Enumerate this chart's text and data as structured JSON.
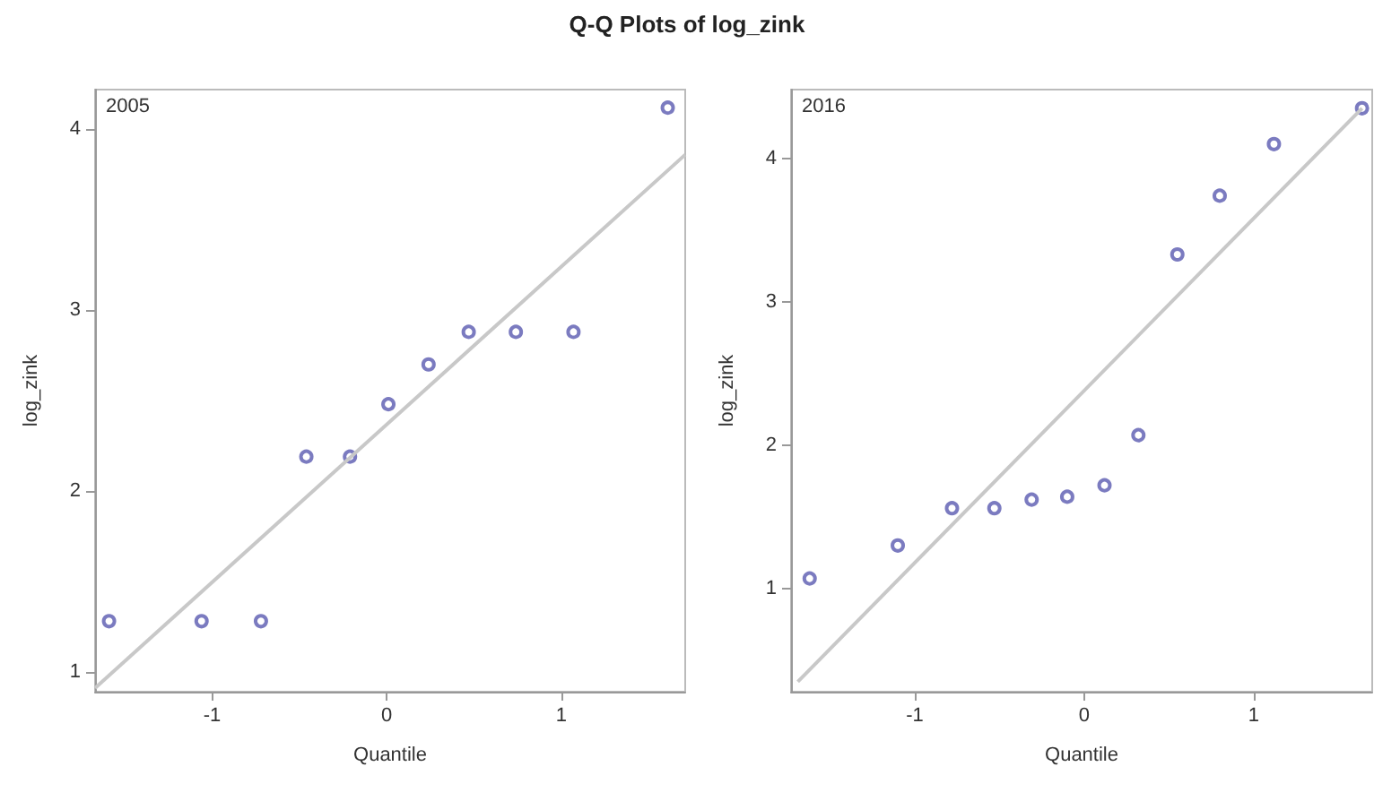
{
  "chart_data": [
    {
      "type": "scatter",
      "title": "Q-Q Plots of log_zink",
      "xlabel": "Quantile",
      "ylabel": "log_zink",
      "annotations": [
        "2005"
      ],
      "xlim": [
        -1.67,
        1.71
      ],
      "xticks": [
        -1,
        0,
        1
      ],
      "ylim": [
        0.89,
        4.22
      ],
      "yticks": [
        1,
        2,
        3,
        4
      ],
      "grid": false,
      "marker": "circle",
      "series": [
        {
          "color": "#5a5ab0",
          "x": [
            -1.59,
            -1.06,
            -0.72,
            -0.46,
            -0.21,
            0.01,
            0.24,
            0.47,
            0.74,
            1.07,
            1.61
          ],
          "values": [
            1.28,
            1.28,
            1.28,
            2.19,
            2.19,
            2.48,
            2.7,
            2.88,
            2.88,
            2.88,
            4.12
          ]
        },
        {
          "type": "line",
          "color": "#c8c8c8",
          "line_style": "solid",
          "marker": "none",
          "x": [
            -1.67,
            1.71
          ],
          "values": [
            0.91,
            3.86
          ]
        }
      ]
    },
    {
      "type": "scatter",
      "xlabel": "Quantile",
      "ylabel": "log_zink",
      "annotations": [
        "2016"
      ],
      "xlim": [
        -1.73,
        1.7
      ],
      "xticks": [
        -1,
        0,
        1
      ],
      "ylim": [
        0.28,
        4.48
      ],
      "yticks": [
        1,
        2,
        3,
        4
      ],
      "grid": false,
      "marker": "circle",
      "series": [
        {
          "color": "#5a5ab0",
          "x": [
            -1.62,
            -1.1,
            -0.78,
            -0.53,
            -0.31,
            -0.1,
            0.12,
            0.32,
            0.55,
            0.8,
            1.12,
            1.64
          ],
          "values": [
            1.07,
            1.3,
            1.56,
            1.56,
            1.62,
            1.64,
            1.72,
            2.07,
            3.33,
            3.74,
            4.1,
            4.35
          ]
        },
        {
          "type": "line",
          "color": "#c8c8c8",
          "line_style": "solid",
          "marker": "none",
          "x": [
            -1.69,
            1.64
          ],
          "values": [
            0.35,
            4.35
          ]
        }
      ]
    }
  ]
}
